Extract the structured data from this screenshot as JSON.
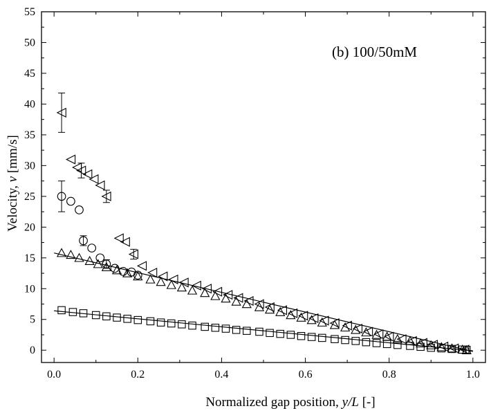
{
  "chart_data": {
    "type": "scatter",
    "title": "",
    "annotation": "(b) 100/50mM",
    "xlabel": "Normalized gap position, y/L [-]",
    "ylabel": "Velocity, v [mm/s]",
    "xlim": [
      -0.03,
      1.03
    ],
    "ylim": [
      -2,
      55
    ],
    "x_ticks": [
      0.0,
      0.2,
      0.4,
      0.6,
      0.8,
      1.0
    ],
    "x_tick_labels": [
      "0.0",
      "0.2",
      "0.4",
      "0.6",
      "0.8",
      "1.0"
    ],
    "y_ticks": [
      0,
      5,
      10,
      15,
      20,
      25,
      30,
      35,
      40,
      45,
      50,
      55
    ],
    "y_tick_labels": [
      "0",
      "5",
      "10",
      "15",
      "20",
      "25",
      "30",
      "35",
      "40",
      "45",
      "50",
      "55"
    ],
    "grid": false,
    "legend": "none",
    "series": [
      {
        "marker": "square",
        "x": [
          0.018,
          0.045,
          0.07,
          0.1,
          0.125,
          0.15,
          0.175,
          0.2,
          0.23,
          0.255,
          0.28,
          0.305,
          0.33,
          0.36,
          0.385,
          0.41,
          0.435,
          0.46,
          0.49,
          0.515,
          0.54,
          0.565,
          0.59,
          0.615,
          0.64,
          0.67,
          0.695,
          0.72,
          0.745,
          0.77,
          0.795,
          0.82,
          0.85,
          0.875,
          0.9,
          0.925,
          0.95,
          0.975,
          0.985
        ],
        "y": [
          6.5,
          6.2,
          6.0,
          5.7,
          5.5,
          5.3,
          5.1,
          4.9,
          4.7,
          4.5,
          4.35,
          4.2,
          4.0,
          3.8,
          3.65,
          3.5,
          3.3,
          3.15,
          3.0,
          2.8,
          2.65,
          2.5,
          2.3,
          2.15,
          2.0,
          1.8,
          1.65,
          1.5,
          1.3,
          1.15,
          1.0,
          0.85,
          0.7,
          0.55,
          0.4,
          0.3,
          0.2,
          0.1,
          0.05
        ],
        "fit_line": [
          [
            0.0,
            6.4
          ],
          [
            1.0,
            -0.1
          ]
        ]
      },
      {
        "marker": "triangle-up",
        "x": [
          0.018,
          0.04,
          0.06,
          0.085,
          0.105,
          0.125,
          0.15,
          0.175,
          0.2,
          0.23,
          0.255,
          0.28,
          0.305,
          0.33,
          0.36,
          0.385,
          0.41,
          0.435,
          0.46,
          0.49,
          0.515,
          0.54,
          0.565,
          0.59,
          0.615,
          0.64,
          0.67,
          0.695,
          0.72,
          0.745,
          0.77,
          0.795,
          0.82,
          0.85,
          0.875,
          0.9,
          0.925,
          0.95,
          0.975,
          0.985
        ],
        "y": [
          15.8,
          15.5,
          15.0,
          14.5,
          14.0,
          13.5,
          13.0,
          12.5,
          12.0,
          11.5,
          11.1,
          10.6,
          10.2,
          9.7,
          9.3,
          8.8,
          8.4,
          7.9,
          7.5,
          7.0,
          6.6,
          6.2,
          5.7,
          5.3,
          4.9,
          4.5,
          4.1,
          3.7,
          3.3,
          2.9,
          2.5,
          2.2,
          1.8,
          1.5,
          1.1,
          0.8,
          0.5,
          0.3,
          0.1,
          0.0
        ],
        "fit_line": [
          [
            0.0,
            15.8
          ],
          [
            1.0,
            -0.2
          ]
        ]
      },
      {
        "marker": "circle",
        "x": [
          0.018,
          0.04,
          0.06,
          0.07,
          0.09,
          0.11,
          0.125,
          0.145,
          0.165,
          0.185,
          0.2
        ],
        "y": [
          25.0,
          24.2,
          22.8,
          17.8,
          16.6,
          15.0,
          14.0,
          13.3,
          12.8,
          12.7,
          12.2
        ],
        "y_err": [
          2.5,
          0,
          0,
          0.8,
          0,
          0,
          0.7,
          0,
          0,
          0,
          0
        ]
      },
      {
        "marker": "triangle-left",
        "x": [
          0.018,
          0.04,
          0.055,
          0.065,
          0.08,
          0.095,
          0.11,
          0.125,
          0.155,
          0.17,
          0.19,
          0.21,
          0.235,
          0.26,
          0.285,
          0.31,
          0.34,
          0.365,
          0.39,
          0.415,
          0.44,
          0.465,
          0.49,
          0.515,
          0.545,
          0.57,
          0.595,
          0.62,
          0.645,
          0.67,
          0.7,
          0.725,
          0.75,
          0.775,
          0.8,
          0.83,
          0.855,
          0.88,
          0.905,
          0.93,
          0.955,
          0.98
        ],
        "y": [
          38.6,
          31.0,
          29.7,
          29.2,
          28.6,
          27.8,
          26.8,
          25.0,
          18.2,
          17.6,
          15.6,
          13.7,
          12.6,
          12.0,
          11.5,
          11.0,
          10.5,
          10.0,
          9.5,
          9.0,
          8.5,
          8.0,
          7.5,
          7.0,
          6.5,
          6.0,
          5.6,
          5.2,
          4.8,
          4.4,
          4.0,
          3.5,
          3.0,
          2.6,
          2.2,
          1.8,
          1.5,
          1.2,
          0.9,
          0.6,
          0.3,
          0.1
        ],
        "y_err": [
          3.2,
          0,
          0,
          1.2,
          0,
          0,
          0,
          1.0,
          0,
          0,
          0.8,
          0,
          0,
          0,
          0,
          0,
          0,
          0,
          0,
          0,
          0,
          0,
          0,
          0,
          0,
          0,
          0,
          0,
          0,
          0,
          0,
          0,
          0,
          0,
          0,
          0,
          0,
          0,
          0,
          0,
          0,
          0
        ]
      }
    ]
  }
}
